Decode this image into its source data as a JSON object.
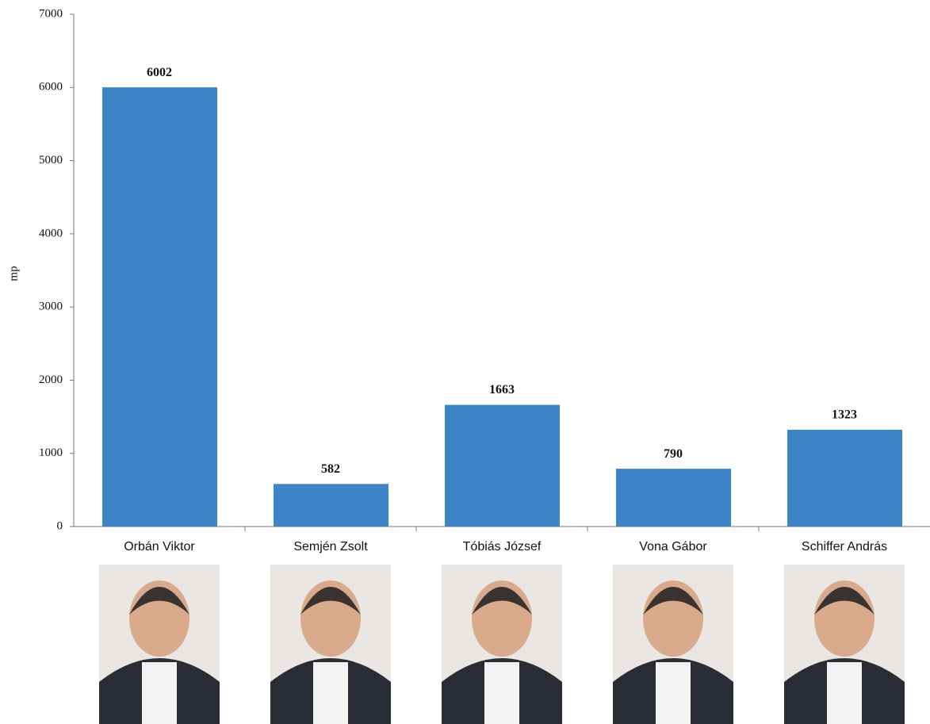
{
  "chart_data": {
    "type": "bar",
    "y_label": "mp",
    "categories": [
      "Orbán Viktor",
      "Semjén Zsolt",
      "Tóbiás József",
      "Vona Gábor",
      "Schiffer András"
    ],
    "values": [
      6002,
      582,
      1663,
      790,
      1323
    ],
    "color": "#3e84c8",
    "ylim": [
      0,
      7000
    ],
    "yticks": [
      0,
      1000,
      2000,
      3000,
      4000,
      5000,
      6000,
      7000
    ],
    "grid": false
  }
}
